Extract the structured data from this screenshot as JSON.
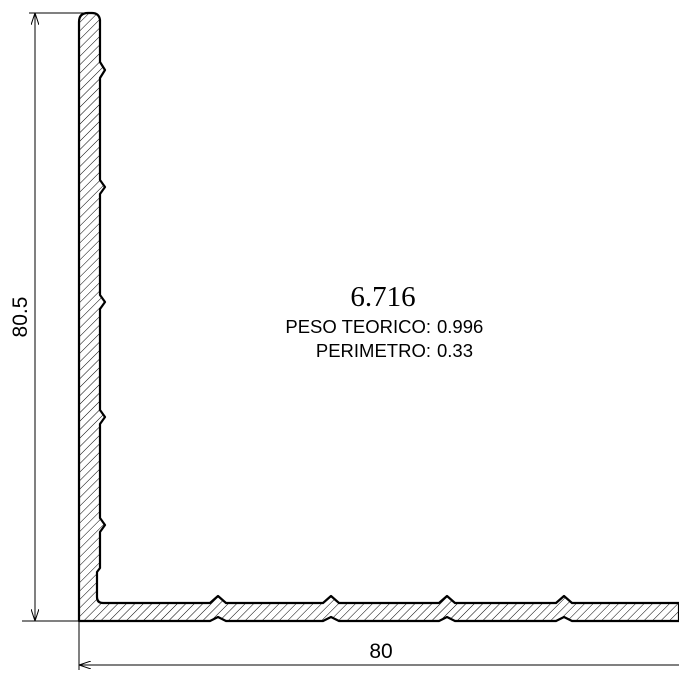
{
  "profile": {
    "code": "6.716",
    "weight_label": "PESO TEORICO:",
    "weight_value": "0.996",
    "perimeter_label": "PERIMETRO:",
    "perimeter_value": "0.33"
  },
  "dimensions": {
    "height": "80.5",
    "width": "80"
  },
  "style": {
    "line_color": "#000000",
    "background": "#ffffff"
  }
}
